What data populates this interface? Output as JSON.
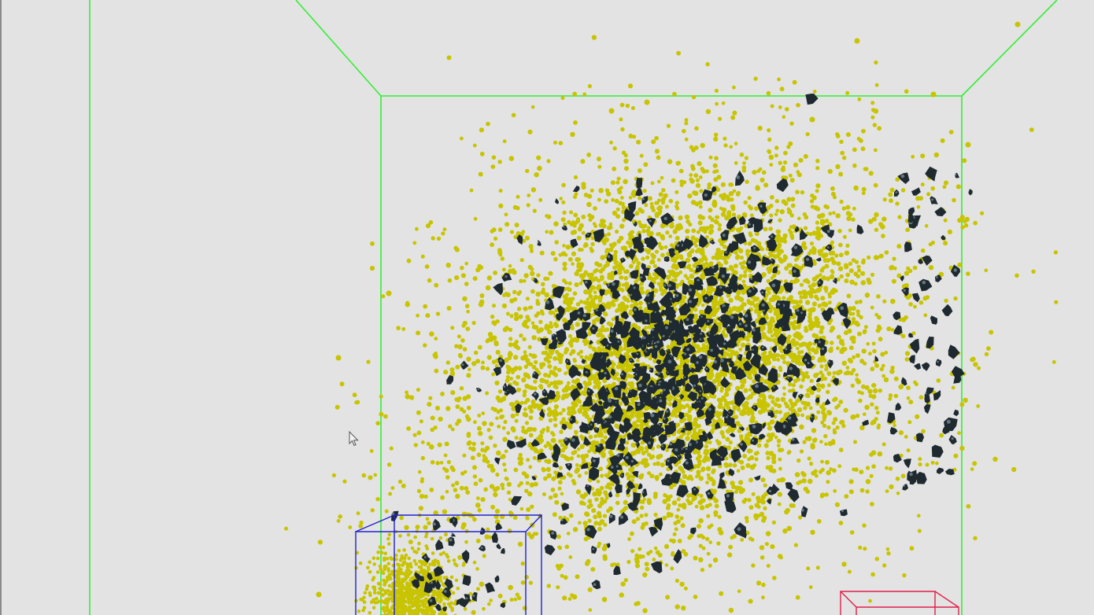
{
  "viewer": {
    "kind": "3d-particle-viewport",
    "background_color": "#e3e3e3",
    "bounding_box_color": "#33ee33",
    "selection_box_color": "#2222cc",
    "secondary_box_color": "#e0204a",
    "particle_colors": {
      "yellow": "#c8c400",
      "dark": "#1f2a30",
      "dark_highlight": "#7f97a0"
    },
    "icons": [
      "mouse-pointer-icon"
    ]
  }
}
